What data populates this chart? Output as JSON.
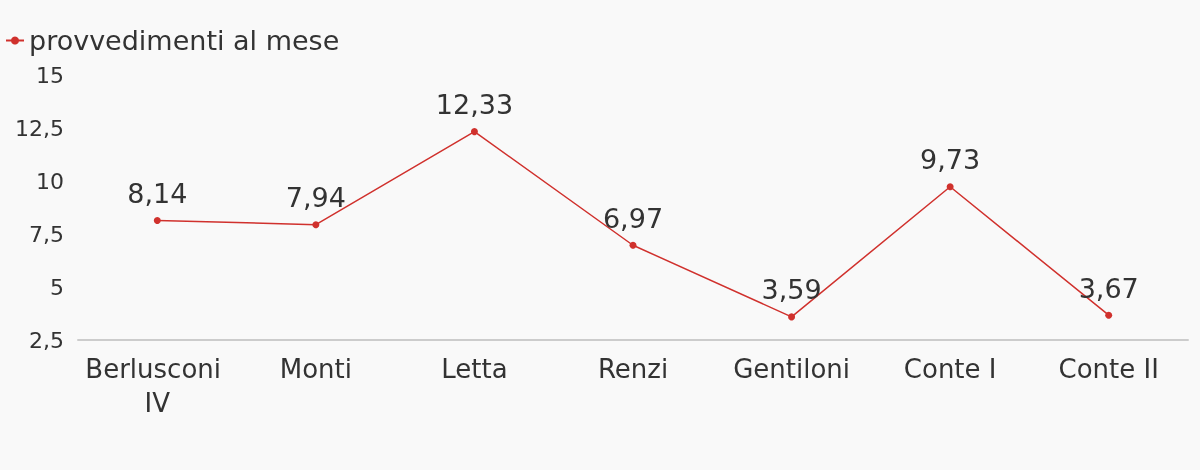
{
  "chart_data": {
    "type": "line",
    "categories": [
      "Berlusconi IV",
      "Monti",
      "Letta",
      "Renzi",
      "Gentiloni",
      "Conte I",
      "Conte II"
    ],
    "series": [
      {
        "name": "provvedimenti al mese",
        "color": "#d0312d",
        "values": [
          8.14,
          7.94,
          12.33,
          6.97,
          3.59,
          9.73,
          3.67
        ],
        "value_labels": [
          "8,14",
          "7,94",
          "12,33",
          "6,97",
          "3,59",
          "9,73",
          "3,67"
        ]
      }
    ],
    "ylim": [
      2.5,
      15
    ],
    "yticks": [
      {
        "value": 2.5,
        "label": "2,5"
      },
      5,
      {
        "value": 7.5,
        "label": "7,5"
      },
      10,
      {
        "value": 12.5,
        "label": "12,5"
      },
      15
    ],
    "grid": false,
    "legend": "top left",
    "marker": "circle",
    "line_style": "solid"
  }
}
